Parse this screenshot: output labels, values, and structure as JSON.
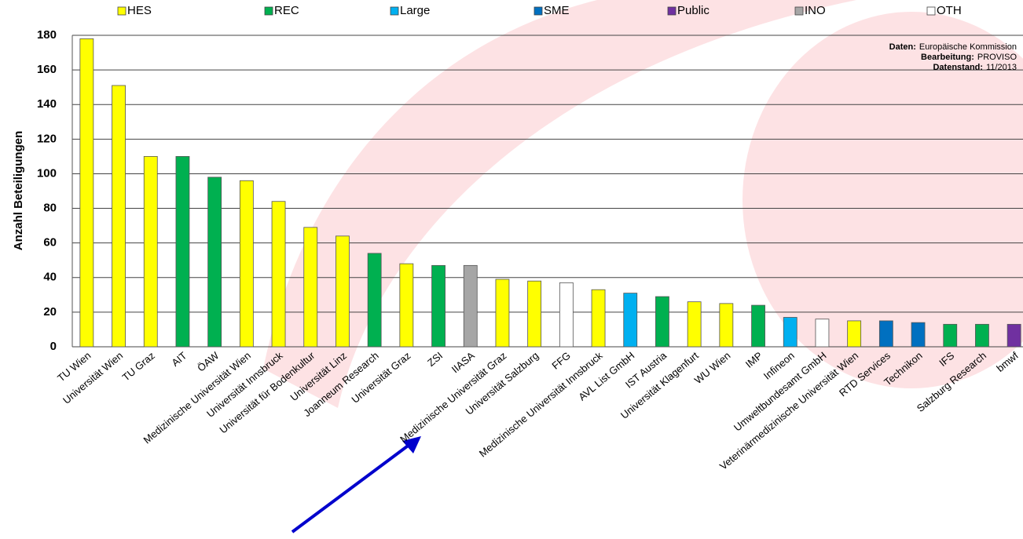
{
  "chart_data": {
    "type": "bar",
    "y_label": "Anzahl Beteiligungen",
    "categories": [
      "TU Wien",
      "Universität Wien",
      "TU Graz",
      "AIT",
      "ÖAW",
      "Medizinische Universität Wien",
      "Universität Innsbruck",
      "Universität für Bodenkultur",
      "Universität Linz",
      "Joanneum Research",
      "Universität Graz",
      "ZSI",
      "IIASA",
      "Medizinische Universität Graz",
      "Universität Salzburg",
      "FFG",
      "Medizinische Universität Innsbruck",
      "AVL List GmbH",
      "IST Austria",
      "Universität Klagenfurt",
      "WU Wien",
      "IMP",
      "Infineon",
      "Umweltbundesamt GmbH",
      "Veterinärmedizinische Universität Wien",
      "RTD Services",
      "Technikon",
      "IFS",
      "Salzburg Research",
      "bmwf"
    ],
    "series": [
      {
        "name": "HES",
        "color": "#ffff00",
        "values": [
          178,
          151,
          110,
          null,
          null,
          96,
          84,
          69,
          64,
          null,
          48,
          null,
          null,
          39,
          38,
          null,
          33,
          null,
          null,
          26,
          25,
          null,
          null,
          null,
          15,
          null,
          null,
          null,
          null,
          null
        ]
      },
      {
        "name": "REC",
        "color": "#00b050",
        "values": [
          null,
          null,
          null,
          110,
          98,
          null,
          null,
          null,
          null,
          54,
          null,
          47,
          null,
          null,
          null,
          null,
          null,
          null,
          29,
          null,
          null,
          24,
          null,
          null,
          null,
          null,
          null,
          13,
          13,
          null
        ]
      },
      {
        "name": "Large",
        "color": "#00b0f0",
        "values": [
          null,
          null,
          null,
          null,
          null,
          null,
          null,
          null,
          null,
          null,
          null,
          null,
          null,
          null,
          null,
          null,
          null,
          31,
          null,
          null,
          null,
          null,
          17,
          null,
          null,
          null,
          null,
          null,
          null,
          null
        ]
      },
      {
        "name": "SME",
        "color": "#0070c0",
        "values": [
          null,
          null,
          null,
          null,
          null,
          null,
          null,
          null,
          null,
          null,
          null,
          null,
          null,
          null,
          null,
          null,
          null,
          null,
          null,
          null,
          null,
          null,
          null,
          null,
          null,
          15,
          14,
          null,
          null,
          null
        ]
      },
      {
        "name": "Public",
        "color": "#7030a0",
        "values": [
          null,
          null,
          null,
          null,
          null,
          null,
          null,
          null,
          null,
          null,
          null,
          null,
          null,
          null,
          null,
          null,
          null,
          null,
          null,
          null,
          null,
          null,
          null,
          null,
          null,
          null,
          null,
          null,
          null,
          13
        ]
      },
      {
        "name": "INO",
        "color": "#a6a6a6",
        "values": [
          null,
          null,
          null,
          null,
          null,
          null,
          null,
          null,
          null,
          null,
          null,
          null,
          47,
          null,
          null,
          null,
          null,
          null,
          null,
          null,
          null,
          null,
          null,
          null,
          null,
          null,
          null,
          null,
          null,
          null
        ]
      },
      {
        "name": "OTH",
        "color": "#ffffff",
        "values": [
          null,
          null,
          null,
          null,
          null,
          null,
          null,
          null,
          null,
          null,
          null,
          null,
          null,
          null,
          null,
          37,
          null,
          null,
          null,
          null,
          null,
          null,
          null,
          16,
          null,
          null,
          null,
          null,
          null,
          null
        ]
      }
    ],
    "ylim": [
      0,
      180
    ],
    "yticks": [
      0,
      20,
      40,
      60,
      80,
      100,
      120,
      140,
      160,
      180
    ],
    "grid": true,
    "annotations": [
      {
        "label": "Daten:",
        "text": "Europäische Kommission"
      },
      {
        "label": "Bearbeitung:",
        "text": "PROVISO"
      },
      {
        "label": "Datenstand:",
        "text": "11/2013"
      }
    ]
  }
}
